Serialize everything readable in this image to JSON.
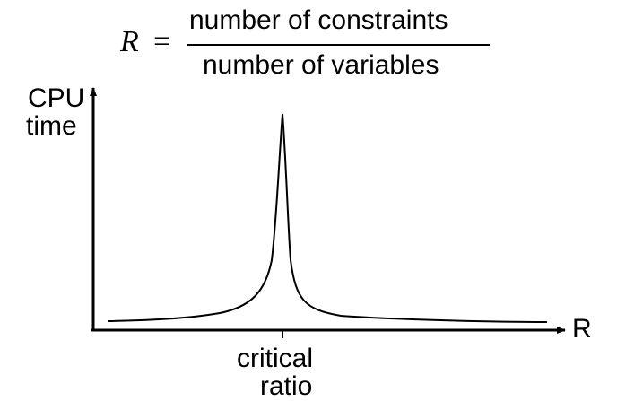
{
  "formula": {
    "variable": "R",
    "equals": "=",
    "numerator": "number of constraints",
    "denominator": "number of variables"
  },
  "axes": {
    "y_label_line1": "CPU",
    "y_label_line2": "time",
    "x_label": "R",
    "x_tick_label_line1": "critical",
    "x_tick_label_line2": "ratio"
  },
  "curve": {
    "shape": "sharp peak",
    "peak_at": "critical ratio"
  },
  "colors": {
    "background": "#ffffff",
    "ink": "#000000"
  }
}
